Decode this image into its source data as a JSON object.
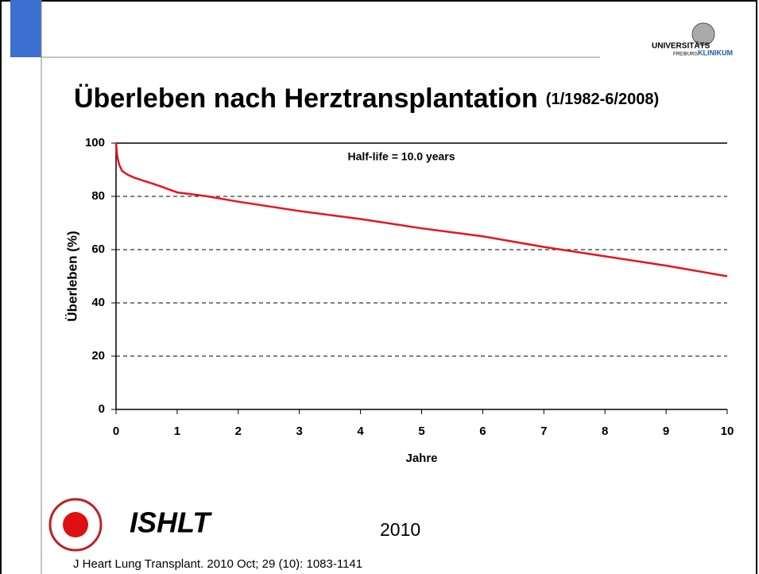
{
  "header": {
    "logo_top": "UNIVERSITÄTS",
    "logo_sub": "FREIBURG",
    "logo_right": "KLINIKUM"
  },
  "title": "Überleben nach Herztransplantation",
  "title_suffix": "(1/1982-6/2008)",
  "chart_data": {
    "type": "line",
    "annotation": "Half-life = 10.0 years",
    "xlabel": "Jahre",
    "ylabel": "Überleben (%)",
    "x": [
      0,
      0.02,
      0.05,
      0.1,
      0.2,
      0.3,
      0.5,
      0.7,
      1,
      1.5,
      2,
      3,
      4,
      5,
      6,
      7,
      8,
      9,
      10
    ],
    "series": [
      {
        "color": "#e8141b",
        "values": [
          100,
          95,
          92,
          89.5,
          88,
          87,
          85.5,
          84,
          81.5,
          80,
          78,
          74.5,
          71.5,
          68,
          65,
          61,
          57.5,
          54,
          50
        ]
      }
    ],
    "xlim": [
      0,
      10
    ],
    "ylim": [
      0,
      100
    ],
    "xticks": [
      0,
      1,
      2,
      3,
      4,
      5,
      6,
      7,
      8,
      9,
      10
    ],
    "yticks": [
      0,
      20,
      40,
      60,
      80,
      100
    ],
    "grid": true
  },
  "footer": {
    "org": "ISHLT",
    "year": "2010",
    "citation": "J Heart Lung Transplant. 2010 Oct; 29 (10): 1083-1141"
  }
}
